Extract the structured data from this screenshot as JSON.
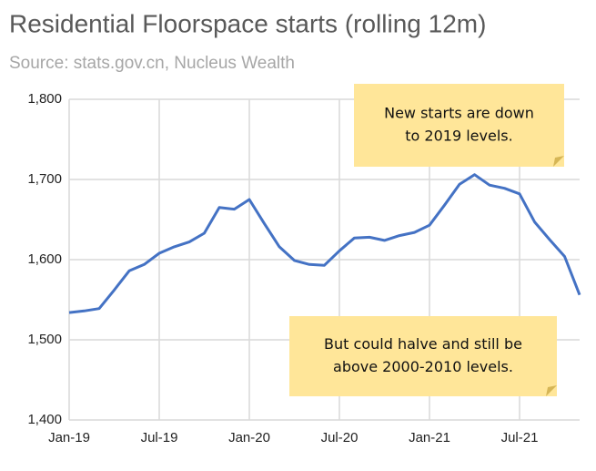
{
  "chart_data": {
    "type": "line",
    "title": "Residential Floorspace starts (rolling 12m)",
    "subtitle": "Source: stats.gov.cn, Nucleus Wealth",
    "categories": [
      "Jan-19",
      null,
      null,
      null,
      null,
      null,
      "Jul-19",
      null,
      null,
      null,
      null,
      null,
      "Jan-20",
      null,
      null,
      null,
      null,
      null,
      "Jul-20",
      null,
      null,
      null,
      null,
      null,
      "Jan-21",
      null,
      null,
      null,
      null,
      null,
      "Jul-21",
      null,
      null,
      null,
      null
    ],
    "series": [
      {
        "name": "Residential floorspace starts",
        "color": "#4472c4",
        "values": [
          1534,
          1536,
          1539,
          1562,
          1586,
          1594,
          1608,
          1616,
          1622,
          1633,
          1665,
          1663,
          1675,
          1645,
          1616,
          1599,
          1594,
          1593,
          1611,
          1627,
          1628,
          1624,
          1630,
          1634,
          1643,
          1668,
          1694,
          1706,
          1693,
          1689,
          1682,
          1647,
          1625,
          1604,
          1556
        ]
      }
    ],
    "ylim": [
      1400,
      1800
    ],
    "yticks": [
      {
        "value": 1400,
        "label": "1,400"
      },
      {
        "value": 1500,
        "label": "1,500"
      },
      {
        "value": 1600,
        "label": "1,600"
      },
      {
        "value": 1700,
        "label": "1,700"
      },
      {
        "value": 1800,
        "label": "1,800"
      }
    ],
    "grid": true,
    "annotations": [
      {
        "lines": [
          "New starts are down",
          "to 2019 levels."
        ]
      },
      {
        "lines": [
          "But could halve and still be",
          "above 2000-2010 levels."
        ]
      }
    ]
  }
}
